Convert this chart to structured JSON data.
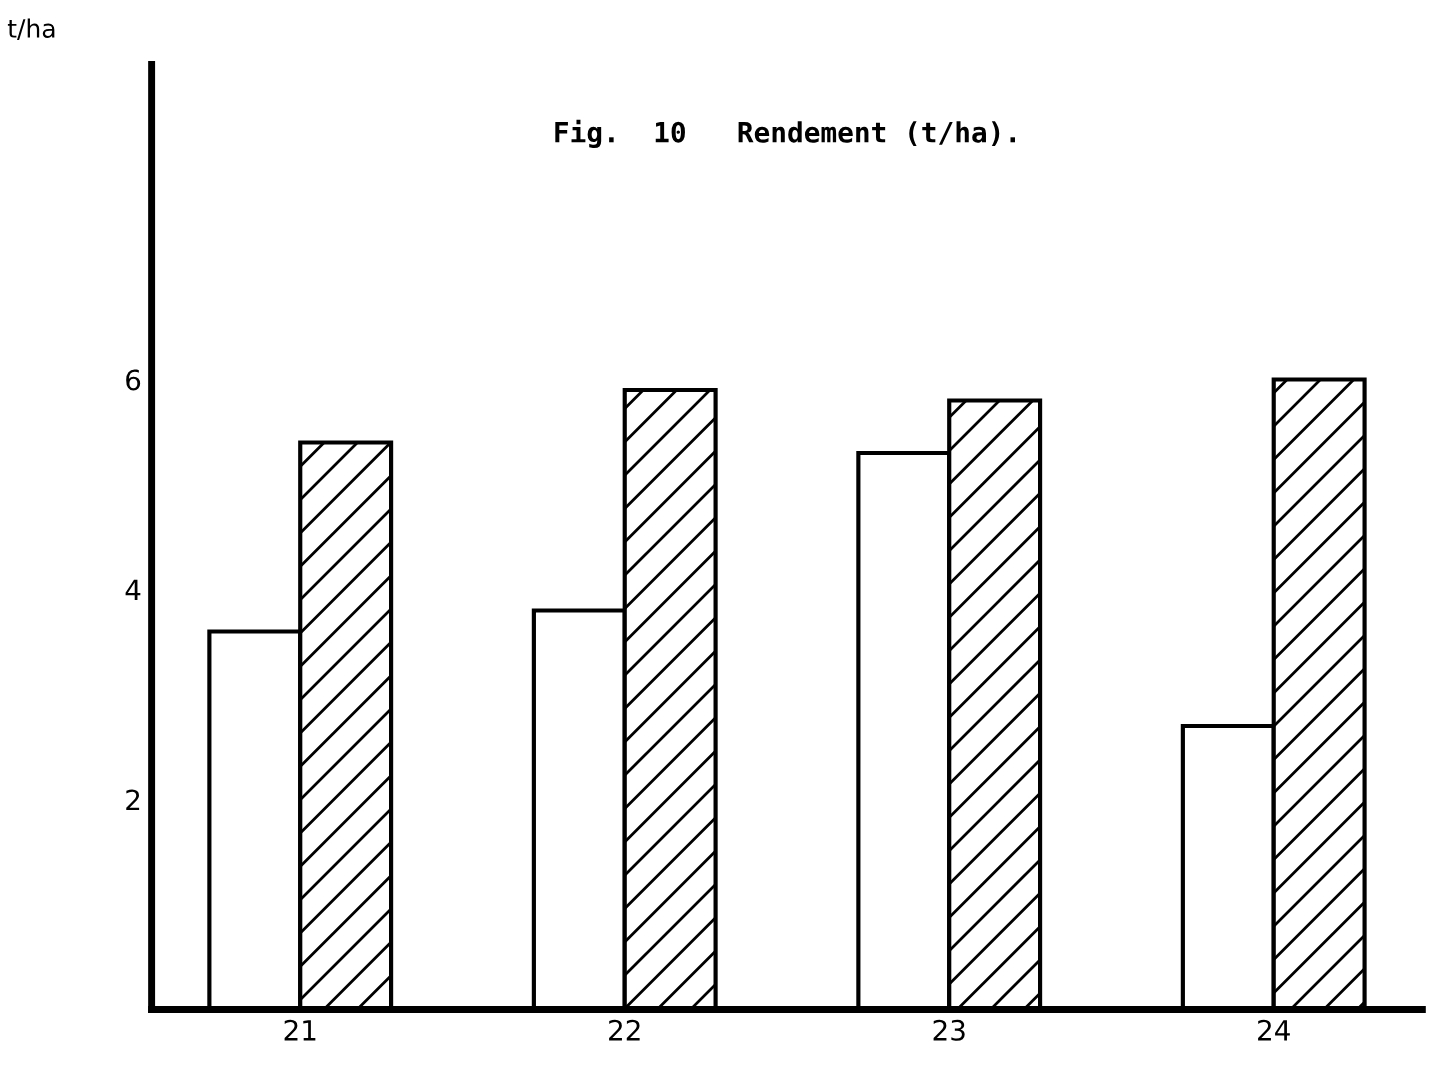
{
  "chart_data": {
    "type": "bar",
    "title": "Fig.  10   Rendement (t/ha).",
    "ylabel": "t/ha",
    "categories": [
      "21",
      "22",
      "23",
      "24"
    ],
    "series": [
      {
        "color": "#000000",
        "values": [
          3.6,
          3.8,
          5.3,
          2.7
        ]
      },
      {
        "color": "#000000",
        "values": [
          5.4,
          5.9,
          5.8,
          6.0
        ]
      }
    ],
    "ylim": [
      0,
      9
    ],
    "yticks": [
      2,
      4,
      6
    ],
    "grid": false,
    "legend": false
  }
}
